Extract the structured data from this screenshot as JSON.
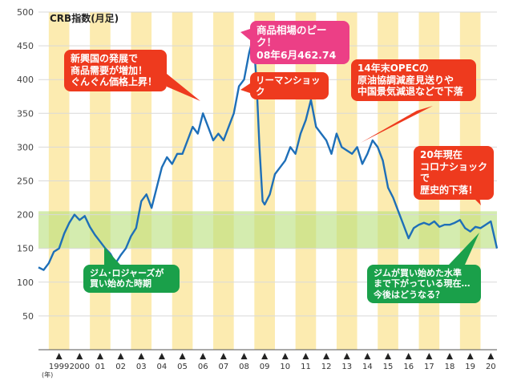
{
  "chart_data": {
    "type": "line",
    "title": "CRB指数(月足)",
    "ylim": [
      0,
      500
    ],
    "yticks": [
      50,
      100,
      150,
      200,
      250,
      300,
      350,
      400,
      450,
      500
    ],
    "x_unit": "(年)",
    "xticks": [
      "1999",
      "2000",
      "01",
      "02",
      "03",
      "04",
      "05",
      "06",
      "07",
      "08",
      "09",
      "10",
      "11",
      "12",
      "13",
      "14",
      "15",
      "16",
      "17",
      "18",
      "19",
      "20"
    ],
    "highlight_band": [
      150,
      205
    ],
    "series": [
      {
        "color": "#1e6fb8",
        "x": [
          1998.0,
          1998.25,
          1998.5,
          1998.75,
          1999.0,
          1999.25,
          1999.5,
          1999.75,
          2000.0,
          2000.25,
          2000.5,
          2000.75,
          2001.0,
          2001.25,
          2001.5,
          2001.75,
          2002.0,
          2002.25,
          2002.5,
          2002.75,
          2003.0,
          2003.25,
          2003.5,
          2003.75,
          2004.0,
          2004.25,
          2004.5,
          2004.75,
          2005.0,
          2005.25,
          2005.5,
          2005.75,
          2006.0,
          2006.25,
          2006.5,
          2006.75,
          2007.0,
          2007.25,
          2007.5,
          2007.75,
          2008.0,
          2008.25,
          2008.45,
          2008.6,
          2008.75,
          2008.9,
          2009.0,
          2009.25,
          2009.5,
          2009.75,
          2010.0,
          2010.25,
          2010.5,
          2010.75,
          2011.0,
          2011.25,
          2011.5,
          2011.75,
          2012.0,
          2012.25,
          2012.5,
          2012.75,
          2013.0,
          2013.25,
          2013.5,
          2013.75,
          2014.0,
          2014.25,
          2014.5,
          2014.75,
          2015.0,
          2015.25,
          2015.5,
          2015.75,
          2016.0,
          2016.25,
          2016.5,
          2016.75,
          2017.0,
          2017.25,
          2017.5,
          2017.75,
          2018.0,
          2018.25,
          2018.5,
          2018.75,
          2019.0,
          2019.25,
          2019.5,
          2019.75,
          2020.0,
          2020.3
        ],
        "values": [
          122,
          118,
          128,
          145,
          150,
          172,
          188,
          200,
          192,
          198,
          182,
          170,
          160,
          150,
          142,
          128,
          140,
          150,
          168,
          180,
          220,
          230,
          210,
          240,
          270,
          285,
          275,
          290,
          290,
          310,
          330,
          320,
          350,
          330,
          310,
          320,
          310,
          330,
          350,
          390,
          400,
          440,
          462.74,
          400,
          300,
          220,
          215,
          230,
          260,
          270,
          280,
          300,
          290,
          320,
          340,
          370,
          330,
          320,
          310,
          290,
          320,
          300,
          295,
          290,
          300,
          275,
          290,
          310,
          300,
          280,
          240,
          225,
          205,
          185,
          165,
          180,
          185,
          188,
          185,
          190,
          182,
          185,
          185,
          188,
          192,
          180,
          175,
          182,
          180,
          185,
          190,
          150
        ]
      }
    ],
    "annotations": {
      "peak": "商品相場のピーク！\n08年6月462.74",
      "emerging": "新興国の発展で\n商品需要が増加！\nぐんぐん価格上昇！",
      "lehman": "リーマンショック",
      "opec": "14年末OPECの\n原油協調減産見送りや\n中国景気減退などで下落",
      "covid": "20年現在\nコロナショックで\n歴史的下落！",
      "rogers_start": "ジム･ロジャーズが\n買い始めた時期",
      "rogers_now": "ジムが買い始めた水準\nまで下がっている現在…\n今後はどうなる？"
    }
  }
}
